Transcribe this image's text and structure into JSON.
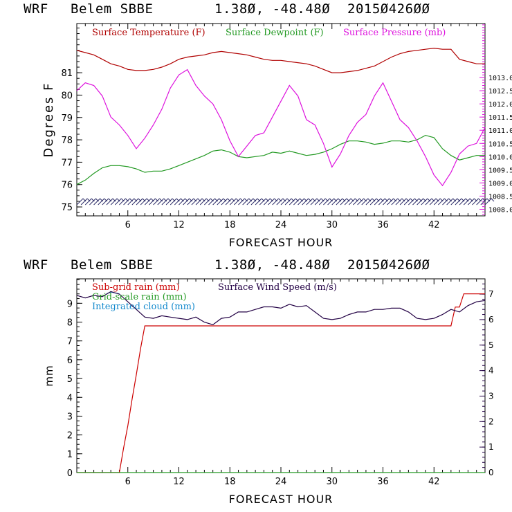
{
  "colors": {
    "temperature": "#b00000",
    "dewpoint": "#229922",
    "pressure": "#dd11dd",
    "subgrid_rain": "#cc0000",
    "gridscale_rain": "#229922",
    "cloud": "#1188cc",
    "wind": "#220044",
    "wind_barbs": "#2a2a66"
  },
  "header": {
    "model": "WRF",
    "station": "Belem SBBE",
    "coords": "1.38Ø, -48.48Ø",
    "init": "2015Ø426ØØ"
  },
  "chart_data": [
    {
      "type": "line",
      "name": "surface-meteogram",
      "xlabel": "FORECAST HOUR",
      "ylabel": "Degrees F",
      "xlim": [
        0,
        48
      ],
      "ylim": [
        74.6,
        83.2
      ],
      "x_ticks": [
        "6",
        "12",
        "18",
        "24",
        "30",
        "36",
        "42"
      ],
      "y_ticks": [
        "75",
        "76",
        "77",
        "78",
        "79",
        "80",
        "81"
      ],
      "y2lim": [
        1007.75,
        1015.05
      ],
      "y2_ticks": [
        "1008.0",
        "1008.5",
        "1009.0",
        "1009.5",
        "1010.0",
        "1010.5",
        "1011.0",
        "1011.5",
        "1012.0",
        "1012.5",
        "1013.0"
      ],
      "legend": [
        "Surface Temperature (F)",
        "Surface Dewpoint (F)",
        "Surface Pressure (mb)"
      ],
      "series": [
        {
          "name": "Surface Temperature (F)",
          "axis": "left",
          "x": [
            0,
            1,
            2,
            3,
            4,
            5,
            6,
            7,
            8,
            9,
            10,
            11,
            12,
            13,
            14,
            15,
            16,
            17,
            18,
            19,
            20,
            21,
            22,
            23,
            24,
            25,
            26,
            27,
            28,
            29,
            30,
            31,
            32,
            33,
            34,
            35,
            36,
            37,
            38,
            39,
            40,
            41,
            42,
            43,
            44,
            45,
            46,
            47,
            48
          ],
          "values": [
            82.0,
            81.9,
            81.8,
            81.6,
            81.4,
            81.3,
            81.15,
            81.1,
            81.1,
            81.15,
            81.25,
            81.4,
            81.6,
            81.7,
            81.75,
            81.8,
            81.9,
            81.95,
            81.9,
            81.85,
            81.8,
            81.7,
            81.6,
            81.55,
            81.55,
            81.5,
            81.45,
            81.4,
            81.3,
            81.15,
            81.0,
            81.0,
            81.05,
            81.1,
            81.2,
            81.3,
            81.5,
            81.7,
            81.85,
            81.95,
            82.0,
            82.05,
            82.1,
            82.05,
            82.05,
            81.6,
            81.5,
            81.4,
            81.4
          ]
        },
        {
          "name": "Surface Dewpoint (F)",
          "axis": "left",
          "x": [
            0,
            1,
            2,
            3,
            4,
            5,
            6,
            7,
            8,
            9,
            10,
            11,
            12,
            13,
            14,
            15,
            16,
            17,
            18,
            19,
            20,
            21,
            22,
            23,
            24,
            25,
            26,
            27,
            28,
            29,
            30,
            31,
            32,
            33,
            34,
            35,
            36,
            37,
            38,
            39,
            40,
            41,
            42,
            43,
            44,
            45,
            46,
            47,
            48
          ],
          "values": [
            76.0,
            76.2,
            76.5,
            76.75,
            76.85,
            76.85,
            76.8,
            76.7,
            76.55,
            76.6,
            76.6,
            76.7,
            76.85,
            77.0,
            77.15,
            77.3,
            77.5,
            77.55,
            77.45,
            77.25,
            77.2,
            77.25,
            77.3,
            77.45,
            77.4,
            77.5,
            77.4,
            77.3,
            77.35,
            77.45,
            77.6,
            77.8,
            77.95,
            77.95,
            77.9,
            77.8,
            77.85,
            77.95,
            77.95,
            77.9,
            78.0,
            78.2,
            78.1,
            77.6,
            77.3,
            77.1,
            77.2,
            77.3,
            77.3
          ]
        },
        {
          "name": "Surface Pressure (mb)",
          "axis": "right",
          "x": [
            0,
            1,
            2,
            3,
            4,
            5,
            6,
            7,
            8,
            9,
            10,
            11,
            12,
            13,
            14,
            15,
            16,
            17,
            18,
            19,
            20,
            21,
            22,
            23,
            24,
            25,
            26,
            27,
            28,
            29,
            30,
            31,
            32,
            33,
            34,
            35,
            36,
            37,
            38,
            39,
            40,
            41,
            42,
            43,
            44,
            45,
            46,
            47,
            48
          ],
          "values": [
            1012.5,
            1012.8,
            1012.7,
            1012.3,
            1011.5,
            1011.2,
            1010.8,
            1010.3,
            1010.7,
            1011.2,
            1011.8,
            1012.6,
            1013.1,
            1013.3,
            1012.7,
            1012.3,
            1012.0,
            1011.4,
            1010.6,
            1010.0,
            1010.4,
            1010.8,
            1010.9,
            1011.5,
            1012.1,
            1012.7,
            1012.3,
            1011.4,
            1011.2,
            1010.5,
            1009.6,
            1010.1,
            1010.8,
            1011.3,
            1011.6,
            1012.3,
            1012.8,
            1012.1,
            1011.4,
            1011.1,
            1010.6,
            1010.0,
            1009.3,
            1008.9,
            1009.4,
            1010.1,
            1010.4,
            1010.5,
            1011.1
          ]
        }
      ]
    },
    {
      "type": "line",
      "name": "precipitation-wind",
      "xlabel": "FORECAST HOUR",
      "ylabel": "mm",
      "xlim": [
        0,
        48
      ],
      "ylim": [
        0,
        10.3
      ],
      "x_ticks": [
        "6",
        "12",
        "18",
        "24",
        "30",
        "36",
        "42"
      ],
      "y_ticks": [
        "0",
        "1",
        "2",
        "3",
        "4",
        "5",
        "6",
        "7",
        "8",
        "9"
      ],
      "y2lim": [
        0,
        7.6
      ],
      "y2_ticks": [
        "0",
        "1",
        "2",
        "3",
        "4",
        "5",
        "6",
        "7"
      ],
      "legend": [
        "Sub-grid rain (mm)",
        "Grid-scale rain (mm)",
        "Integrated cloud (mm)",
        "Surface Wind Speed (m/s)"
      ],
      "series": [
        {
          "name": "Sub-grid rain (mm)",
          "axis": "left",
          "x": [
            0,
            5,
            5.5,
            6,
            6.5,
            7,
            7.5,
            8,
            8.5,
            44,
            44.5,
            45,
            45.5,
            46,
            48
          ],
          "values": [
            0,
            0,
            1.3,
            2.5,
            3.9,
            5.2,
            6.6,
            7.8,
            7.8,
            7.8,
            8.8,
            8.8,
            9.5,
            9.5,
            9.5
          ]
        },
        {
          "name": "Grid-scale rain (mm)",
          "axis": "left",
          "x": [
            0,
            48
          ],
          "values": [
            0,
            0
          ]
        },
        {
          "name": "Integrated cloud (mm)",
          "axis": "left",
          "x": [
            3.5,
            4,
            4.5,
            5
          ],
          "values": [
            9.5,
            9.6,
            9.55,
            9.5
          ]
        },
        {
          "name": "Surface Wind Speed (m/s)",
          "axis": "right",
          "x": [
            0,
            1,
            2,
            3,
            4,
            5,
            6,
            7,
            8,
            9,
            10,
            11,
            12,
            13,
            14,
            15,
            16,
            17,
            18,
            19,
            20,
            21,
            22,
            23,
            24,
            25,
            26,
            27,
            28,
            29,
            30,
            31,
            32,
            33,
            34,
            35,
            36,
            37,
            38,
            39,
            40,
            41,
            42,
            43,
            44,
            45,
            46,
            47,
            48
          ],
          "values": [
            6.95,
            6.85,
            6.95,
            6.9,
            7.1,
            7.0,
            6.7,
            6.4,
            6.1,
            6.05,
            6.15,
            6.1,
            6.05,
            6.0,
            6.1,
            5.9,
            5.8,
            6.05,
            6.1,
            6.3,
            6.3,
            6.4,
            6.5,
            6.5,
            6.45,
            6.6,
            6.5,
            6.55,
            6.3,
            6.05,
            6.0,
            6.05,
            6.2,
            6.3,
            6.3,
            6.4,
            6.4,
            6.45,
            6.45,
            6.3,
            6.05,
            6.0,
            6.05,
            6.2,
            6.4,
            6.3,
            6.55,
            6.7,
            6.75
          ]
        }
      ]
    }
  ]
}
